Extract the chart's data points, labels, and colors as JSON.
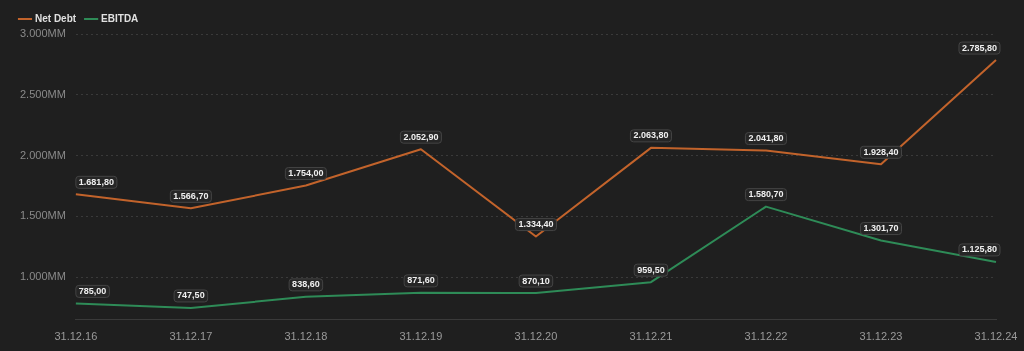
{
  "chart_data": {
    "type": "line",
    "categories": [
      "31.12.16",
      "31.12.17",
      "31.12.18",
      "31.12.19",
      "31.12.20",
      "31.12.21",
      "31.12.22",
      "31.12.23",
      "31.12.24"
    ],
    "series": [
      {
        "name": "Net Debt",
        "color": "#c2632b",
        "values": [
          1681.8,
          1566.7,
          1754.0,
          2052.9,
          1334.4,
          2063.8,
          2041.8,
          1928.4,
          2785.8
        ],
        "value_labels": [
          "1.681,80",
          "1.566,70",
          "1.754,00",
          "2.052,90",
          "1.334,40",
          "2.063,80",
          "2.041,80",
          "1.928,40",
          "2.785,80"
        ]
      },
      {
        "name": "EBITDA",
        "color": "#2e8b57",
        "values": [
          785.0,
          747.5,
          838.6,
          871.6,
          870.1,
          959.5,
          1580.7,
          1301.7,
          1125.8
        ],
        "value_labels": [
          "785,00",
          "747,50",
          "838,60",
          "871,60",
          "870,10",
          "959,50",
          "1.580,70",
          "1.301,70",
          "1.125,80"
        ]
      }
    ],
    "ylim": [
      650,
      3000
    ],
    "yticks": [
      {
        "value": 1000,
        "label": "1.000MM"
      },
      {
        "value": 1500,
        "label": "1.500MM"
      },
      {
        "value": 2000,
        "label": "2.000MM"
      },
      {
        "value": 2500,
        "label": "2.500MM"
      },
      {
        "value": 3000,
        "label": "3.000MM"
      }
    ],
    "grid": "y",
    "legend": "top left",
    "marker": "none",
    "line_style": "solid"
  }
}
